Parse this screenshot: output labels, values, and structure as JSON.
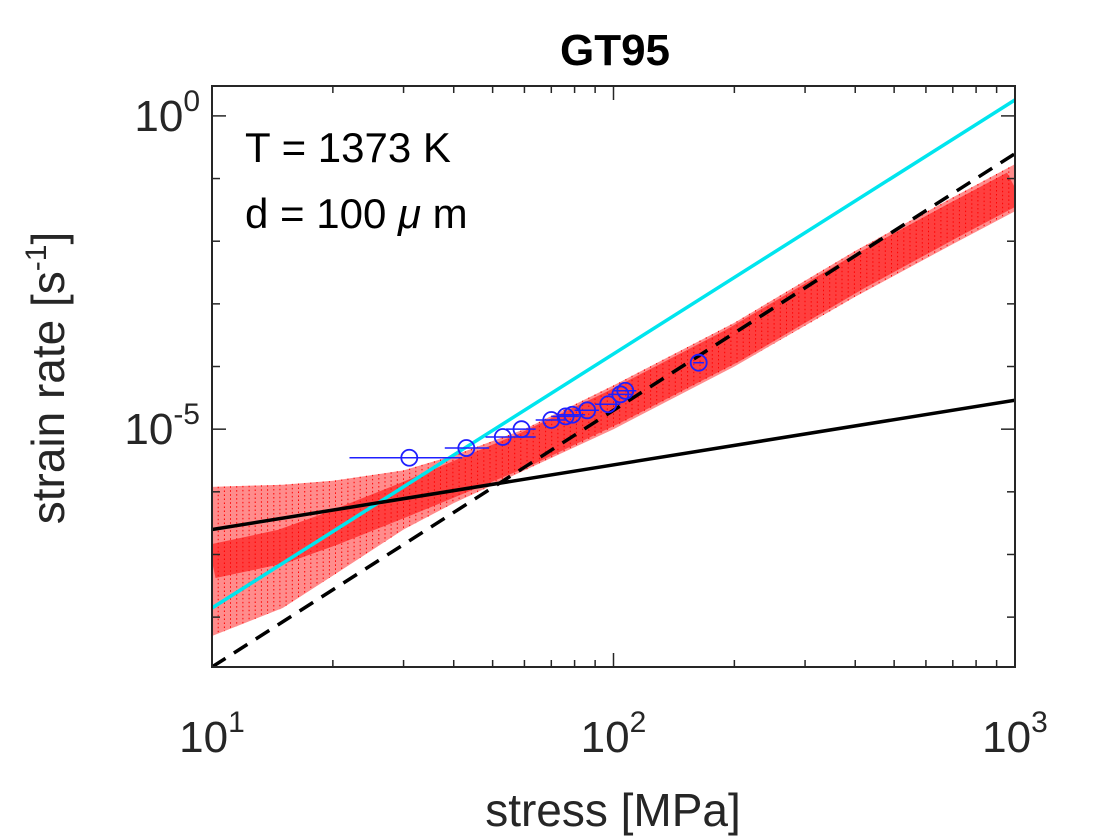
{
  "chart_data": {
    "type": "scatter",
    "title": "GT95",
    "xlabel": "stress [MPa]",
    "ylabel_prefix": "strain rate [s",
    "ylabel_sup": "-1",
    "ylabel_suffix": "]",
    "xscale": "log",
    "yscale": "log",
    "xlim": [
      10,
      1000
    ],
    "ylim": [
      1.6e-09,
      3.0
    ],
    "x_ticks": [
      {
        "value": 10,
        "base": "10",
        "exp": "1"
      },
      {
        "value": 100,
        "base": "10",
        "exp": "2"
      },
      {
        "value": 1000,
        "base": "10",
        "exp": "3"
      }
    ],
    "y_ticks": [
      {
        "value": 1e-05,
        "base": "10",
        "exp": "-5"
      },
      {
        "value": 1,
        "base": "10",
        "exp": "0"
      }
    ],
    "annotations": [
      {
        "text": "T = 1373 K"
      },
      {
        "text_before": "d = 100 ",
        "greek": "μ",
        "text_after": " m"
      }
    ],
    "colors": {
      "uncertainty_band": "#ff0000",
      "fit_total": "#00e5ee",
      "diffusion_creep": "#000000",
      "dislocation_creep": "#000000",
      "data_points": "#1f1fff",
      "axes": "#262626"
    },
    "series": [
      {
        "style": "cyan-solid",
        "x": [
          10,
          1000
        ],
        "y": [
          1.4e-08,
          1.8
        ]
      },
      {
        "style": "black-solid",
        "x": [
          10,
          1000
        ],
        "y": [
          2.5e-07,
          2.9e-05
        ]
      },
      {
        "style": "black-dashed",
        "x": [
          10,
          1000
        ],
        "y": [
          1.6e-09,
          0.25
        ]
      },
      {
        "style": "red-band",
        "x": [
          10,
          15,
          20,
          30,
          40,
          60,
          100,
          200,
          400,
          700,
          1000
        ],
        "y_low": [
          5e-09,
          1.4e-08,
          4.6e-08,
          2.5e-07,
          6.6e-07,
          2.2e-06,
          1e-05,
          0.0001,
          0.0013,
          0.009,
          0.03
        ],
        "y_high": [
          1.2e-06,
          1.3e-06,
          1.5e-06,
          2.2e-06,
          3.8e-06,
          1e-05,
          5e-05,
          0.0005,
          0.007,
          0.05,
          0.17
        ]
      },
      {
        "style": "blue-points",
        "x": [
          31,
          43,
          53,
          59,
          70,
          76,
          79,
          86,
          97,
          104,
          107,
          163
        ],
        "y": [
          3.5e-06,
          5e-06,
          7.5e-06,
          1e-05,
          1.4e-05,
          1.6e-05,
          1.7e-05,
          2e-05,
          2.5e-05,
          3.6e-05,
          4.1e-05,
          0.000115
        ],
        "xerr_low": [
          22,
          38,
          48,
          54,
          64,
          70,
          73,
          80,
          90,
          97,
          100,
          158
        ],
        "xerr_high": [
          42,
          49,
          64,
          64,
          76,
          82,
          85,
          92,
          104,
          111,
          114,
          168
        ]
      }
    ]
  }
}
